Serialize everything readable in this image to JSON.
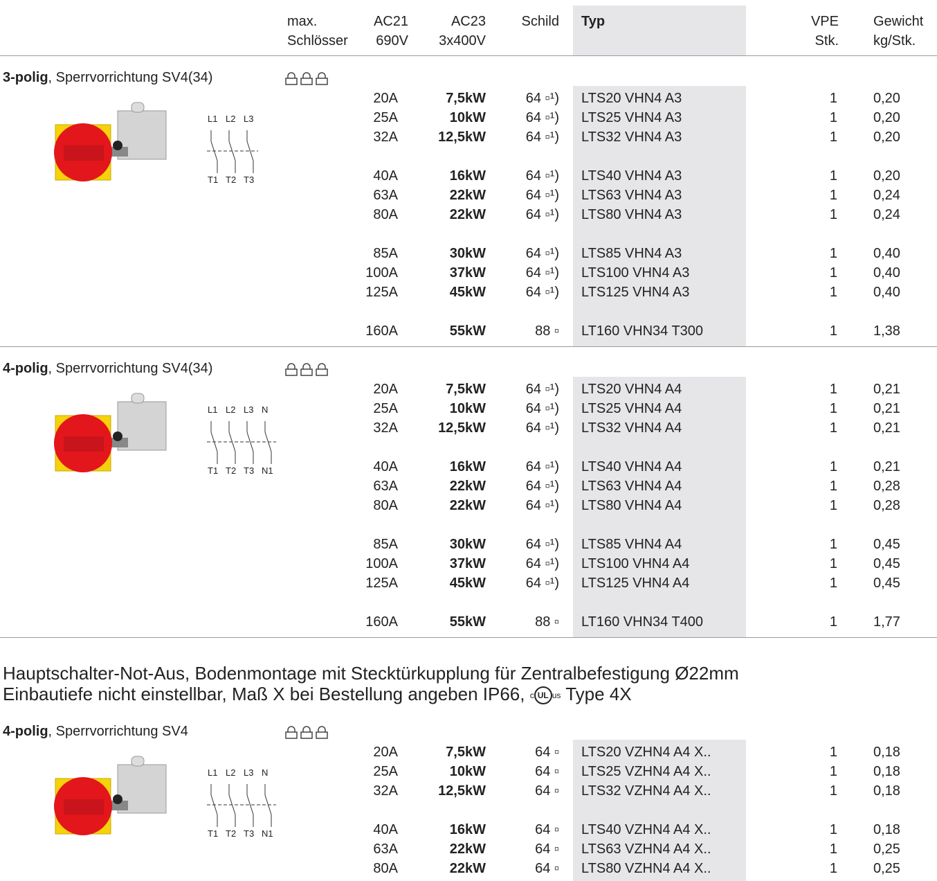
{
  "header": {
    "columns": [
      [
        "max.",
        "Schlösser"
      ],
      [
        "AC21",
        "690V"
      ],
      [
        "AC23",
        "3x400V"
      ],
      [
        "Schild"
      ],
      [
        "Typ"
      ],
      [
        "VPE",
        "Stk."
      ],
      [
        "Gewicht",
        "kg/Stk."
      ]
    ]
  },
  "sections": [
    {
      "title_bold": "3-polig",
      "title_rest": ", Sperrvorrichtung SV4(34)",
      "diagram": {
        "top": [
          "L1",
          "L2",
          "L3"
        ],
        "bottom": [
          "T1",
          "T2",
          "T3"
        ]
      },
      "groups": [
        {
          "rows": [
            [
              "20A",
              "7,5kW",
              "64 ▫¹)",
              "LTS20 VHN4 A3",
              "1",
              "0,20"
            ],
            [
              "25A",
              "10kW",
              "64 ▫¹)",
              "LTS25 VHN4 A3",
              "1",
              "0,20"
            ],
            [
              "32A",
              "12,5kW",
              "64 ▫¹)",
              "LTS32 VHN4 A3",
              "1",
              "0,20"
            ]
          ]
        },
        {
          "rows": [
            [
              "40A",
              "16kW",
              "64 ▫¹)",
              "LTS40 VHN4 A3",
              "1",
              "0,20"
            ],
            [
              "63A",
              "22kW",
              "64 ▫¹)",
              "LTS63 VHN4 A3",
              "1",
              "0,24"
            ],
            [
              "80A",
              "22kW",
              "64 ▫¹)",
              "LTS80 VHN4 A3",
              "1",
              "0,24"
            ]
          ]
        },
        {
          "rows": [
            [
              "85A",
              "30kW",
              "64 ▫¹)",
              "LTS85 VHN4 A3",
              "1",
              "0,40"
            ],
            [
              "100A",
              "37kW",
              "64 ▫¹)",
              "LTS100 VHN4 A3",
              "1",
              "0,40"
            ],
            [
              "125A",
              "45kW",
              "64 ▫¹)",
              "LTS125 VHN4 A3",
              "1",
              "0,40"
            ]
          ]
        },
        {
          "rows": [
            [
              "160A",
              "55kW",
              "88 ▫",
              "LT160 VHN34 T300",
              "1",
              "1,38"
            ]
          ]
        }
      ]
    },
    {
      "title_bold": "4-polig",
      "title_rest": ", Sperrvorrichtung SV4(34)",
      "diagram": {
        "top": [
          "L1",
          "L2",
          "L3",
          "N"
        ],
        "bottom": [
          "T1",
          "T2",
          "T3",
          "N1"
        ]
      },
      "groups": [
        {
          "rows": [
            [
              "20A",
              "7,5kW",
              "64 ▫¹)",
              "LTS20 VHN4 A4",
              "1",
              "0,21"
            ],
            [
              "25A",
              "10kW",
              "64 ▫¹)",
              "LTS25 VHN4 A4",
              "1",
              "0,21"
            ],
            [
              "32A",
              "12,5kW",
              "64 ▫¹)",
              "LTS32 VHN4 A4",
              "1",
              "0,21"
            ]
          ]
        },
        {
          "rows": [
            [
              "40A",
              "16kW",
              "64 ▫¹)",
              "LTS40 VHN4 A4",
              "1",
              "0,21"
            ],
            [
              "63A",
              "22kW",
              "64 ▫¹)",
              "LTS63 VHN4 A4",
              "1",
              "0,28"
            ],
            [
              "80A",
              "22kW",
              "64 ▫¹)",
              "LTS80 VHN4 A4",
              "1",
              "0,28"
            ]
          ]
        },
        {
          "rows": [
            [
              "85A",
              "30kW",
              "64 ▫¹)",
              "LTS85 VHN4 A4",
              "1",
              "0,45"
            ],
            [
              "100A",
              "37kW",
              "64 ▫¹)",
              "LTS100 VHN4 A4",
              "1",
              "0,45"
            ],
            [
              "125A",
              "45kW",
              "64 ▫¹)",
              "LTS125 VHN4 A4",
              "1",
              "0,45"
            ]
          ]
        },
        {
          "rows": [
            [
              "160A",
              "55kW",
              "88 ▫",
              "LT160 VHN34 T400",
              "1",
              "1,77"
            ]
          ]
        }
      ]
    },
    {
      "title_bold": "4-polig",
      "title_rest": ", Sperrvorrichtung SV4",
      "diagram": {
        "top": [
          "L1",
          "L2",
          "L3",
          "N"
        ],
        "bottom": [
          "T1",
          "T2",
          "T3",
          "N1"
        ]
      },
      "groups": [
        {
          "rows": [
            [
              "20A",
              "7,5kW",
              "64 ▫",
              "LTS20 VZHN4 A4 X..",
              "1",
              "0,18"
            ],
            [
              "25A",
              "10kW",
              "64 ▫",
              "LTS25 VZHN4 A4 X..",
              "1",
              "0,18"
            ],
            [
              "32A",
              "12,5kW",
              "64 ▫",
              "LTS32 VZHN4 A4 X..",
              "1",
              "0,18"
            ]
          ]
        },
        {
          "rows": [
            [
              "40A",
              "16kW",
              "64 ▫",
              "LTS40 VZHN4 A4 X..",
              "1",
              "0,18"
            ],
            [
              "63A",
              "22kW",
              "64 ▫",
              "LTS63 VZHN4 A4 X..",
              "1",
              "0,25"
            ],
            [
              "80A",
              "22kW",
              "64 ▫",
              "LTS80 VZHN4 A4 X..",
              "1",
              "0,25"
            ]
          ]
        }
      ]
    }
  ],
  "note": {
    "line1": "Hauptschalter-Not-Aus, Bodenmontage mit Stecktürkupplung für Zentralbefestigung Ø22mm",
    "line2": "Einbautiefe nicht einstellbar, Maß X bei Bestellung angeben  IP66,",
    "cert": {
      "prefix": "c",
      "mark": "UL",
      "suffix": "us"
    },
    "line2_end": "Type 4X"
  }
}
